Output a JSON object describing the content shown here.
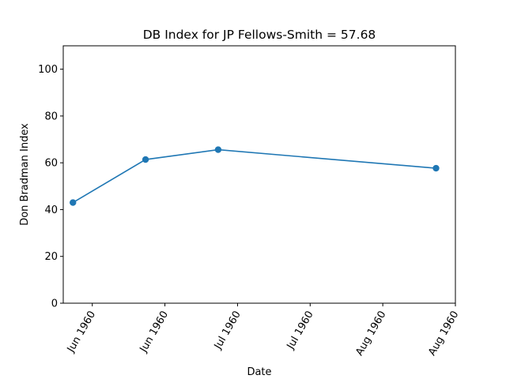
{
  "chart_data": {
    "type": "line",
    "title": "DB Index for JP Fellows-Smith = 57.68",
    "xlabel": "Date",
    "ylabel": "Don Bradman Index",
    "x": [
      "1960-06-04",
      "1960-06-19",
      "1960-07-04",
      "1960-08-18"
    ],
    "series": [
      {
        "values": [
          43.0,
          61.4,
          65.6,
          57.68
        ],
        "color": "#1f77b4",
        "marker": "circle"
      }
    ],
    "xlim": [
      "1960-06-02",
      "1960-08-22"
    ],
    "ylim": [
      0,
      110
    ],
    "yticks": [
      0,
      20,
      40,
      60,
      80,
      100
    ],
    "xticks": [
      {
        "date": "1960-06-08",
        "label": "Jun 1960"
      },
      {
        "date": "1960-06-23",
        "label": "Jun 1960"
      },
      {
        "date": "1960-07-08",
        "label": "Jul 1960"
      },
      {
        "date": "1960-07-23",
        "label": "Jul 1960"
      },
      {
        "date": "1960-08-07",
        "label": "Aug 1960"
      },
      {
        "date": "1960-08-22",
        "label": "Aug 1960"
      }
    ],
    "grid": false,
    "legend": "none"
  }
}
